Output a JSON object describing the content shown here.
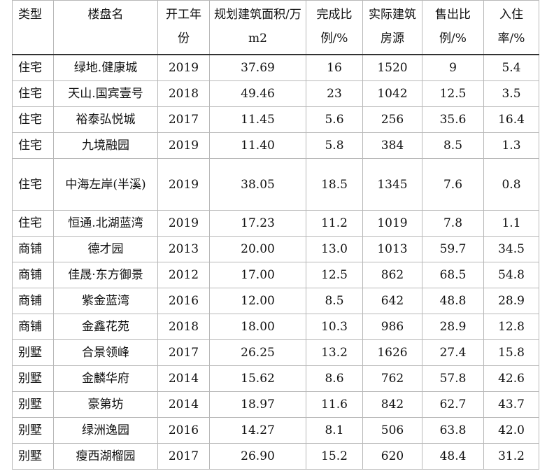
{
  "headers": {
    "type": "类型",
    "name": "楼盘名",
    "year": "开工年份",
    "area": "规划建筑面积/万 m2",
    "complete": "完成比例/%",
    "actual": "实际建筑房源",
    "sold": "售出比例/%",
    "occupancy": "入住率/%"
  },
  "rows": [
    {
      "type": "住宅",
      "name": "绿地.健康城",
      "year": "2019",
      "area": "37.69",
      "complete": "16",
      "actual": "1520",
      "sold": "9",
      "occupancy": "5.4"
    },
    {
      "type": "住宅",
      "name": "天山.国宾壹号",
      "year": "2018",
      "area": "49.46",
      "complete": "23",
      "actual": "1042",
      "sold": "12.5",
      "occupancy": "3.5"
    },
    {
      "type": "住宅",
      "name": "裕泰弘悦城",
      "year": "2017",
      "area": "11.45",
      "complete": "5.6",
      "actual": "256",
      "sold": "35.6",
      "occupancy": "16.4"
    },
    {
      "type": "住宅",
      "name": "九境融园",
      "year": "2019",
      "area": "11.40",
      "complete": "5.8",
      "actual": "384",
      "sold": "8.5",
      "occupancy": "1.3"
    },
    {
      "type": "住宅",
      "name": "中海左岸(半溪)",
      "year": "2019",
      "area": "38.05",
      "complete": "18.5",
      "actual": "1345",
      "sold": "7.6",
      "occupancy": "0.8"
    },
    {
      "type": "住宅",
      "name": "恒通.北湖蓝湾",
      "year": "2019",
      "area": "17.23",
      "complete": "11.2",
      "actual": "1019",
      "sold": "7.8",
      "occupancy": "1.1"
    },
    {
      "type": "商铺",
      "name": "德才园",
      "year": "2013",
      "area": "20.00",
      "complete": "13.0",
      "actual": "1013",
      "sold": "59.7",
      "occupancy": "34.5"
    },
    {
      "type": "商铺",
      "name": "佳晟·东方御景",
      "year": "2012",
      "area": "17.00",
      "complete": "12.5",
      "actual": "862",
      "sold": "68.5",
      "occupancy": "54.8"
    },
    {
      "type": "商铺",
      "name": "紫金蓝湾",
      "year": "2016",
      "area": "12.00",
      "complete": "8.5",
      "actual": "642",
      "sold": "48.8",
      "occupancy": "28.9"
    },
    {
      "type": "商铺",
      "name": "金鑫花苑",
      "year": "2018",
      "area": "18.00",
      "complete": "10.3",
      "actual": "986",
      "sold": "28.9",
      "occupancy": "12.8"
    },
    {
      "type": "别墅",
      "name": "合景领峰",
      "year": "2017",
      "area": "26.25",
      "complete": "13.2",
      "actual": "1626",
      "sold": "27.4",
      "occupancy": "15.8"
    },
    {
      "type": "别墅",
      "name": "金麟华府",
      "year": "2014",
      "area": "15.62",
      "complete": "8.6",
      "actual": "762",
      "sold": "57.8",
      "occupancy": "42.6"
    },
    {
      "type": "别墅",
      "name": "豪第坊",
      "year": "2014",
      "area": "18.97",
      "complete": "11.6",
      "actual": "842",
      "sold": "62.7",
      "occupancy": "43.7"
    },
    {
      "type": "别墅",
      "name": "绿洲逸园",
      "year": "2016",
      "area": "14.27",
      "complete": "8.1",
      "actual": "506",
      "sold": "63.8",
      "occupancy": "42.0"
    },
    {
      "type": "别墅",
      "name": "瘦西湖榴园",
      "year": "2017",
      "area": "26.90",
      "complete": "15.2",
      "actual": "620",
      "sold": "48.4",
      "occupancy": "31.2"
    }
  ]
}
